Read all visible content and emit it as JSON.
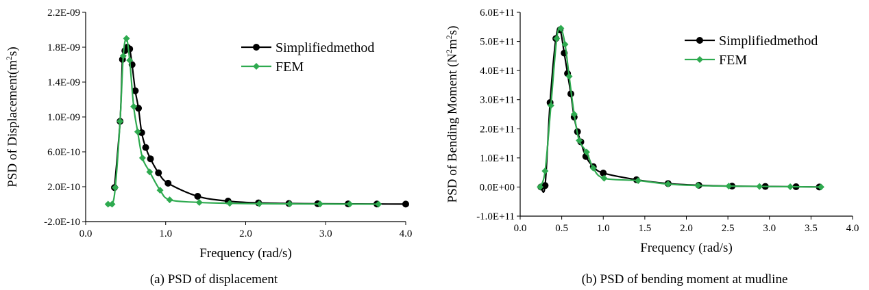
{
  "colors": {
    "simplified": "#000000",
    "fem": "#2eaa4f"
  },
  "chart_data": [
    {
      "type": "line",
      "caption": "(a) PSD of displacement",
      "xlabel": "Frequency (rad/s)",
      "ylabel_main": "PSD of Displacement(m",
      "ylabel_sup": "2",
      "ylabel_end": "s)",
      "xlim": [
        0.0,
        4.0
      ],
      "ylim": [
        -2e-10,
        2.2e-09
      ],
      "xticks": [
        0.0,
        1.0,
        2.0,
        3.0,
        4.0
      ],
      "xtick_labels": [
        "0.0",
        "1.0",
        "2.0",
        "3.0",
        "4.0"
      ],
      "yticks": [
        -2e-10,
        2e-10,
        6e-10,
        1e-09,
        1.4e-09,
        1.8e-09,
        2.2e-09
      ],
      "ytick_labels": [
        "-2.0E-10",
        "2.0E-10",
        "6.0E-10",
        "1.0E-09",
        "1.4E-09",
        "1.8E-09",
        "2.2E-09"
      ],
      "grid": false,
      "legend_position": "top-right",
      "series": [
        {
          "name": "Simplifiedmethod",
          "color": "#000000",
          "marker": "circle",
          "x": [
            0.36,
            0.43,
            0.46,
            0.49,
            0.52,
            0.55,
            0.58,
            0.62,
            0.66,
            0.7,
            0.75,
            0.81,
            0.91,
            1.03,
            1.4,
            1.78,
            2.16,
            2.54,
            2.9,
            3.28,
            3.64,
            4.0
          ],
          "y": [
            1.9e-10,
            9.5e-10,
            1.66e-09,
            1.76e-09,
            1.8e-09,
            1.78e-09,
            1.6e-09,
            1.3e-09,
            1.1e-09,
            8.2e-10,
            6.5e-10,
            5.2e-10,
            3.6e-10,
            2.4e-10,
            9e-11,
            3.5e-11,
            1.5e-11,
            8e-12,
            5e-12,
            3e-12,
            2e-12,
            1e-12
          ]
        },
        {
          "name": "FEM",
          "color": "#2eaa4f",
          "marker": "diamond",
          "x": [
            0.28,
            0.33,
            0.37,
            0.43,
            0.47,
            0.51,
            0.55,
            0.6,
            0.65,
            0.71,
            0.8,
            0.93,
            1.05,
            1.42,
            1.8,
            2.17,
            2.55,
            2.93,
            3.3,
            3.66
          ],
          "y": [
            0.0,
            0.0,
            1.9e-10,
            9.5e-10,
            1.7e-09,
            1.9e-09,
            1.65e-09,
            1.12e-09,
            8.3e-10,
            5.3e-10,
            3.7e-10,
            1.6e-10,
            5e-11,
            2e-11,
            1e-11,
            5e-12,
            3e-12,
            2e-12,
            1e-12,
            0.0
          ]
        }
      ]
    },
    {
      "type": "line",
      "caption": "(b) PSD of bending moment at mudline",
      "xlabel": "Frequency (rad/s)",
      "ylabel_main": "PSD of Bending Moment (N",
      "ylabel_sup": "2",
      "ylabel_mid": "m",
      "ylabel_sup2": "2",
      "ylabel_end": "s)",
      "xlim": [
        0.0,
        4.0
      ],
      "ylim": [
        -100000000000.0,
        600000000000.0
      ],
      "xticks": [
        0.0,
        0.5,
        1.0,
        1.5,
        2.0,
        2.5,
        3.0,
        3.5,
        4.0
      ],
      "xtick_labels": [
        "0.0",
        "0.5",
        "1.0",
        "1.5",
        "2.0",
        "2.5",
        "3.0",
        "3.5",
        "4.0"
      ],
      "yticks": [
        -100000000000.0,
        0.0,
        100000000000.0,
        200000000000.0,
        300000000000.0,
        400000000000.0,
        500000000000.0,
        600000000000.0
      ],
      "ytick_labels": [
        "-1.0E+11",
        "0.0E+00",
        "1.0E+11",
        "2.0E+11",
        "3.0E+11",
        "4.0E+11",
        "5.0E+11",
        "6.0E+11"
      ],
      "grid": false,
      "legend_position": "top-right",
      "series": [
        {
          "name": "Simplifiedmethod",
          "color": "#000000",
          "marker": "circle",
          "x": [
            0.25,
            0.3,
            0.36,
            0.43,
            0.48,
            0.53,
            0.57,
            0.61,
            0.65,
            0.69,
            0.73,
            0.79,
            0.88,
            1.0,
            1.4,
            1.78,
            2.15,
            2.55,
            2.95,
            3.32,
            3.6
          ],
          "y": [
            0.0,
            5000000000.0,
            290000000000.0,
            510000000000.0,
            540000000000.0,
            460000000000.0,
            390000000000.0,
            320000000000.0,
            240000000000.0,
            190000000000.0,
            155000000000.0,
            105000000000.0,
            70000000000.0,
            48000000000.0,
            25000000000.0,
            12000000000.0,
            6000000000.0,
            3000000000.0,
            2000000000.0,
            1000000000.0,
            0.0
          ]
        },
        {
          "name": "FEM",
          "color": "#2eaa4f",
          "marker": "diamond",
          "x": [
            0.24,
            0.3,
            0.37,
            0.44,
            0.49,
            0.54,
            0.59,
            0.65,
            0.71,
            0.8,
            0.88,
            1.01,
            1.42,
            1.78,
            2.14,
            2.51,
            2.88,
            3.25,
            3.62
          ],
          "y": [
            0.0,
            55000000000.0,
            280000000000.0,
            510000000000.0,
            545000000000.0,
            490000000000.0,
            380000000000.0,
            250000000000.0,
            160000000000.0,
            120000000000.0,
            65000000000.0,
            30000000000.0,
            22000000000.0,
            10000000000.0,
            5000000000.0,
            3000000000.0,
            2000000000.0,
            1000000000.0,
            0.0
          ]
        }
      ]
    }
  ]
}
